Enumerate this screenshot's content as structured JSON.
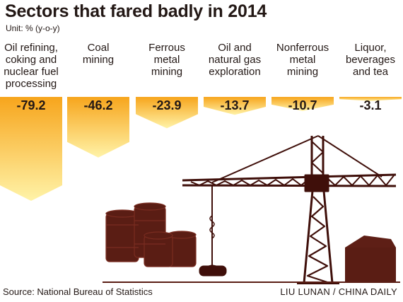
{
  "title": "Sectors that fared badly in 2014",
  "unit": "Unit: % (y-o-y)",
  "source": "Source: National Bureau of Statistics",
  "credit": "LIU LUNAN / CHINA DAILY",
  "colors": {
    "bar_top": "#f7a51c",
    "bar_bottom": "#fff3a8",
    "text": "#231815",
    "dark_red": "#5a1d14",
    "crane": "#3f0f0a"
  },
  "chart_data": {
    "type": "bar",
    "categories": [
      "Oil refining, coking and nuclear fuel processing",
      "Coal mining",
      "Ferrous metal mining",
      "Oil and natural gas exploration",
      "Nonferrous metal mining",
      "Liquor, beverages and tea"
    ],
    "category_lines": [
      [
        "Oil refining,",
        "coking and",
        "nuclear fuel",
        "processing"
      ],
      [
        "Coal",
        "mining"
      ],
      [
        "Ferrous",
        "metal",
        "mining"
      ],
      [
        "Oil and",
        "natural gas",
        "exploration"
      ],
      [
        "Nonferrous",
        "metal",
        "mining"
      ],
      [
        "Liquor,",
        "beverages",
        "and tea"
      ]
    ],
    "values": [
      -79.2,
      -46.2,
      -23.9,
      -13.7,
      -10.7,
      -3.1
    ],
    "labels": [
      "-79.2",
      "-46.2",
      "-23.9",
      "-13.7",
      "-10.7",
      "-3.1"
    ],
    "ylabel": "Unit: % (y-o-y)",
    "ylim": [
      -80,
      0
    ],
    "orientation": "downward"
  }
}
